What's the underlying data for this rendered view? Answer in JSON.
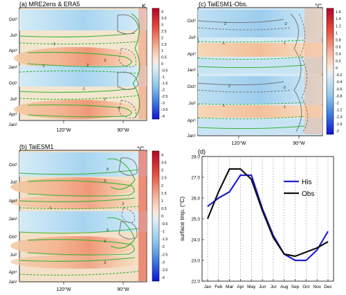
{
  "panels": {
    "a": {
      "title": "(a) MRE2ens & ERA5",
      "unit": "K",
      "colorbar": [
        "4",
        "3.5",
        "3",
        "2.5",
        "2",
        "1.5",
        "1",
        "0.5",
        "0",
        "-0.5",
        "-1",
        "-1.5",
        "-2",
        "-2.5",
        "-3",
        "-3.5",
        "-4"
      ]
    },
    "b": {
      "title": "(b) TaiESM1",
      "unit": "°C",
      "colorbar": [
        "4",
        "3.5",
        "3",
        "2.5",
        "2",
        "1.5",
        "1",
        "0.5",
        "0",
        "-0.5",
        "-1",
        "-1.5",
        "-2",
        "-2.5",
        "-3",
        "-3.5",
        "-4"
      ]
    },
    "c": {
      "title": "(c) TaiESM1-Obs.",
      "unit": "°C",
      "colorbar": [
        "1.6",
        "1.4",
        "1.2",
        "1",
        "0.8",
        "0.6",
        "0.4",
        "0.2",
        "0",
        "-0.2",
        "-0.4",
        "-0.6",
        "-0.8",
        "-1",
        "-1.2",
        "-1.4",
        "-1.6",
        "-2"
      ]
    },
    "d": {
      "title": "(d)"
    }
  },
  "map_time_ticks": [
    "Oct²",
    "Jul²",
    "Apr²",
    "Jan²",
    "Oct¹",
    "Jul¹",
    "Apr¹",
    "Jan¹"
  ],
  "map_lon_ticks": [
    "120°W",
    "90°W"
  ],
  "contour_labels": {
    "a": [
      "-1",
      "2",
      "3",
      "-1",
      "2",
      "3",
      "-1"
    ],
    "b": [
      "5",
      "3",
      "3",
      "-1",
      "5",
      "3",
      "3"
    ],
    "c": [
      "2",
      "-1",
      "-2",
      "1",
      "2",
      "-1",
      "-2",
      "1"
    ]
  },
  "colors": {
    "his": "#1f1fd6",
    "obs": "#111111",
    "contour_green": "#33b233",
    "contour_gray": "#777777"
  },
  "chart_data": {
    "type": "line",
    "categories": [
      "Jan",
      "Feb",
      "Mar",
      "Apr",
      "May",
      "Jun",
      "Jul",
      "Aug",
      "Sep",
      "Oct",
      "Nov",
      "Dec"
    ],
    "ylabel": "surface tmp. (°C)",
    "xlabel": "",
    "ylim": [
      22.0,
      28.0
    ],
    "yticks": [
      "22.0",
      "23.0",
      "24.0",
      "25.0",
      "26.0",
      "27.0",
      "28.0"
    ],
    "grid": "vertical dashed",
    "legend": "top-right",
    "series": [
      {
        "name": "His",
        "values": [
          25.6,
          26.0,
          26.3,
          27.1,
          27.1,
          25.5,
          24.2,
          23.3,
          23.0,
          23.0,
          23.5,
          24.4
        ]
      },
      {
        "name": "Obs",
        "values": [
          25.0,
          26.3,
          27.4,
          27.4,
          26.9,
          25.4,
          24.1,
          23.3,
          23.2,
          23.4,
          23.6,
          23.9
        ]
      }
    ]
  }
}
